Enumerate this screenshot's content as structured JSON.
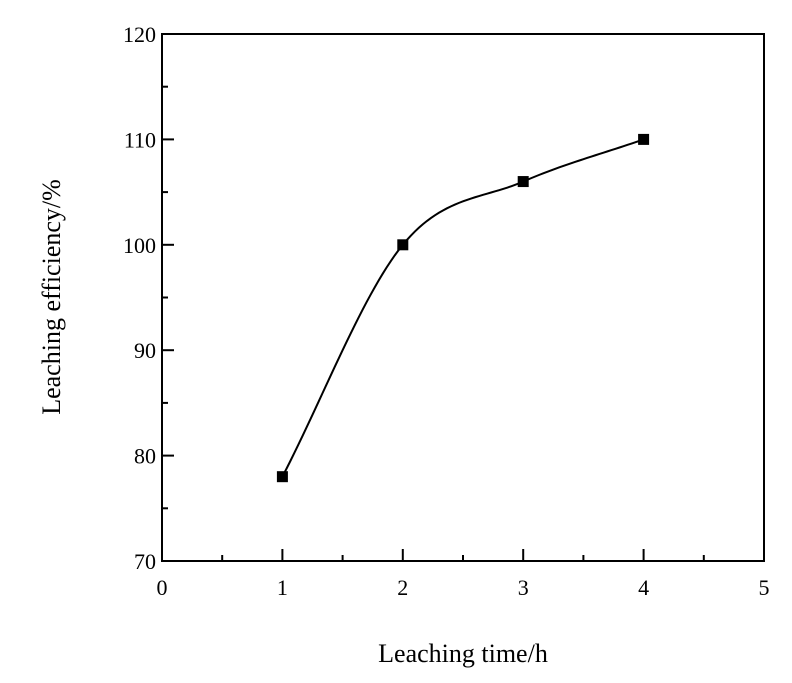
{
  "chart_data": {
    "type": "line",
    "title": "",
    "xlabel": "Leaching time/h",
    "ylabel": "Leaching efficiency/%",
    "xlim": [
      0,
      5
    ],
    "ylim": [
      70,
      120
    ],
    "x_ticks": [
      "0",
      "1",
      "2",
      "3",
      "4",
      "5"
    ],
    "y_ticks": [
      "70",
      "80",
      "90",
      "100",
      "110",
      "120"
    ],
    "grid": false,
    "marker": "square",
    "smooth": true,
    "series": [
      {
        "x": [
          1,
          2,
          3,
          4
        ],
        "y": [
          78,
          100,
          106,
          110
        ]
      }
    ]
  }
}
